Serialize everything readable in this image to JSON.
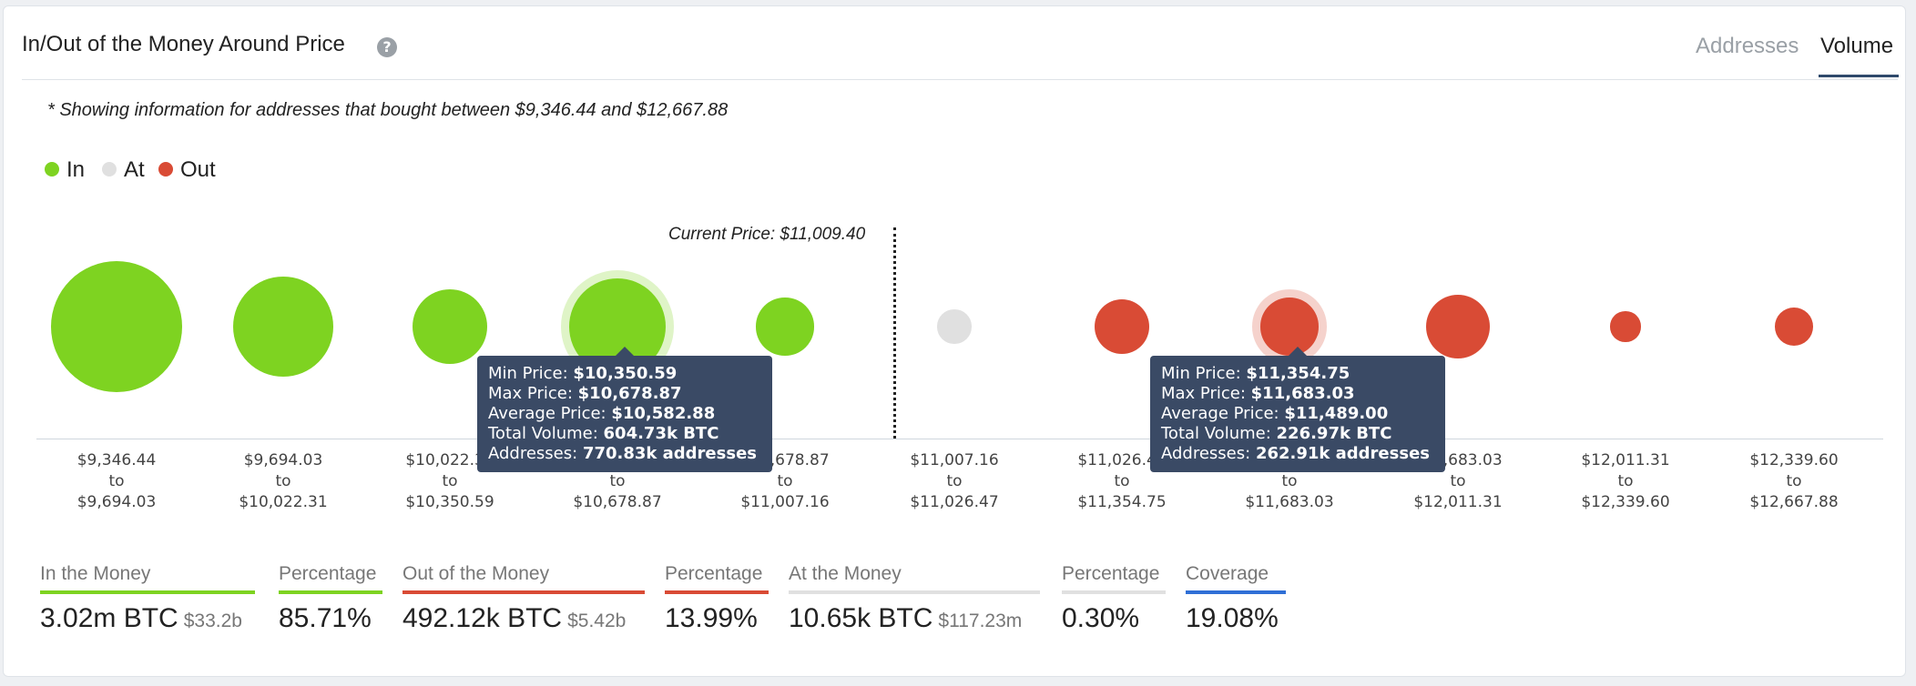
{
  "header": {
    "title": "In/Out of the Money Around Price",
    "help_icon": "?",
    "tabs": [
      {
        "label": "Addresses",
        "active": false
      },
      {
        "label": "Volume",
        "active": true
      }
    ]
  },
  "note": "* Showing information for addresses that bought between $9,346.44 and $12,667.88",
  "legend": [
    {
      "label": "In",
      "color": "#7ed321"
    },
    {
      "label": "At",
      "color": "#e0e0e0"
    },
    {
      "label": "Out",
      "color": "#d94b35"
    }
  ],
  "current_price_label": "Current Price: $11,009.40",
  "chart_data": {
    "type": "scatter",
    "title": "In/Out of the Money Around Price",
    "x_categories": [
      "$9,346.44 to $9,694.03",
      "$9,694.03 to $10,022.31",
      "$10,022.31 to $10,350.59",
      "$10,350.59 to $10,678.87",
      "$10,678.87 to $11,007.16",
      "$11,007.16 to $11,026.47",
      "$11,026.47 to $11,354.75",
      "$11,354.75 to $11,683.03",
      "$11,683.03 to $12,011.31",
      "$12,011.31 to $12,339.60",
      "$12,339.60 to $12,667.88"
    ],
    "status": [
      "In",
      "In",
      "In",
      "In",
      "In",
      "At",
      "Out",
      "Out",
      "Out",
      "Out",
      "Out"
    ],
    "ranges": [
      {
        "from": "$9,346.44",
        "to": "$9,694.03"
      },
      {
        "from": "$9,694.03",
        "to": "$10,022.31"
      },
      {
        "from": "$10,022.31",
        "to": "$10,350.59"
      },
      {
        "from": "$10,350.59",
        "to": "$10,678.87"
      },
      {
        "from": "$10,678.87",
        "to": "$11,007.16"
      },
      {
        "from": "$11,007.16",
        "to": "$11,026.47"
      },
      {
        "from": "$11,026.47",
        "to": "$11,354.75"
      },
      {
        "from": "$11,354.75",
        "to": "$11,683.03"
      },
      {
        "from": "$11,683.03",
        "to": "$12,011.31"
      },
      {
        "from": "$12,011.31",
        "to": "$12,339.60"
      },
      {
        "from": "$12,339.60",
        "to": "$12,667.88"
      }
    ],
    "relative_volume": [
      1.0,
      0.77,
      0.57,
      0.74,
      0.44,
      0.26,
      0.42,
      0.44,
      0.49,
      0.23,
      0.29
    ],
    "current_price": "$11,009.40",
    "highlighted": [
      3,
      7
    ]
  },
  "tooltips": [
    {
      "rows": [
        {
          "k": "Min Price:",
          "v": "$10,350.59"
        },
        {
          "k": "Max Price:",
          "v": "$10,678.87"
        },
        {
          "k": "Average Price:",
          "v": "$10,582.88"
        },
        {
          "k": "Total Volume:",
          "v": "604.73k BTC"
        },
        {
          "k": "Addresses:",
          "v": "770.83k addresses"
        }
      ]
    },
    {
      "rows": [
        {
          "k": "Min Price:",
          "v": "$11,354.75"
        },
        {
          "k": "Max Price:",
          "v": "$11,683.03"
        },
        {
          "k": "Average Price:",
          "v": "$11,489.00"
        },
        {
          "k": "Total Volume:",
          "v": "226.97k BTC"
        },
        {
          "k": "Addresses:",
          "v": "262.91k addresses"
        }
      ]
    }
  ],
  "stats": [
    {
      "label": "In the Money",
      "value": "3.02m BTC",
      "sub": "$33.2b",
      "color": "#7ed321"
    },
    {
      "label": "Percentage",
      "value": "85.71%",
      "sub": "",
      "color": "#7ed321"
    },
    {
      "label": "Out of the Money",
      "value": "492.12k BTC",
      "sub": "$5.42b",
      "color": "#d94b35"
    },
    {
      "label": "Percentage",
      "value": "13.99%",
      "sub": "",
      "color": "#d94b35"
    },
    {
      "label": "At the Money",
      "value": "10.65k BTC",
      "sub": "$117.23m",
      "color": "#e0e0e0"
    },
    {
      "label": "Percentage",
      "value": "0.30%",
      "sub": "",
      "color": "#e0e0e0"
    },
    {
      "label": "Coverage",
      "value": "19.08%",
      "sub": "",
      "color": "#2f6fd6"
    }
  ]
}
